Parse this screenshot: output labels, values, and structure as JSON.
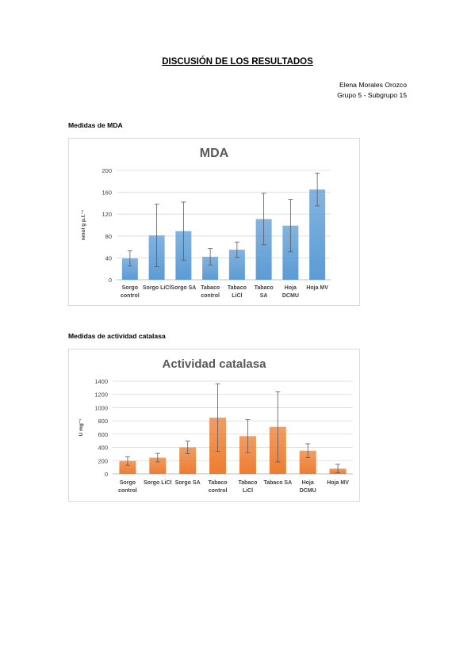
{
  "header": {
    "title": "DISCUSIÓN DE LOS RESULTADOS",
    "author": "Elena Morales Orozco",
    "group": "Grupo 5 - Subgrupo 15"
  },
  "sections": {
    "mda_heading": "Medidas de MDA",
    "catalase_heading": "Medidas de actividad catalasa"
  },
  "chart_data": [
    {
      "type": "bar",
      "title": "MDA",
      "ylabel": "nmol g p.f.⁻¹",
      "xlabel": "",
      "ylim": [
        0,
        200
      ],
      "yticks": [
        0,
        40,
        80,
        120,
        160,
        200
      ],
      "categories": [
        [
          "Sorgo",
          "control"
        ],
        [
          "Sorgo LiCl"
        ],
        [
          "Sorgo SA"
        ],
        [
          "Tabaco",
          "control"
        ],
        [
          "Tabaco",
          "LiCl"
        ],
        [
          "Tabaco",
          "SA"
        ],
        [
          "Hoja",
          "DCMU"
        ],
        [
          "Hoja MV"
        ]
      ],
      "values": [
        39,
        81,
        89,
        42,
        55,
        111,
        99,
        165
      ],
      "errors": [
        14,
        57,
        53,
        15,
        14,
        47,
        48,
        30
      ],
      "color": "#5b9bd5",
      "grid": true
    },
    {
      "type": "bar",
      "title": "Actividad catalasa",
      "ylabel": "U mg⁻¹",
      "xlabel": "",
      "ylim": [
        0,
        1400
      ],
      "yticks": [
        0,
        200,
        400,
        600,
        800,
        1000,
        1200,
        1400
      ],
      "categories": [
        [
          "Sorgo",
          "control"
        ],
        [
          "Sorgo LiCl"
        ],
        [
          "Sorgo SA"
        ],
        [
          "Tabaco",
          "control"
        ],
        [
          "Tabaco",
          "LiCl"
        ],
        [
          "Tabaco SA"
        ],
        [
          "Hoja",
          "DCMU"
        ],
        [
          "Hoja MV"
        ]
      ],
      "values": [
        195,
        245,
        400,
        850,
        570,
        710,
        350,
        80
      ],
      "errors": [
        65,
        65,
        95,
        510,
        250,
        530,
        105,
        65
      ],
      "color": "#ed7d31",
      "grid": true
    }
  ]
}
